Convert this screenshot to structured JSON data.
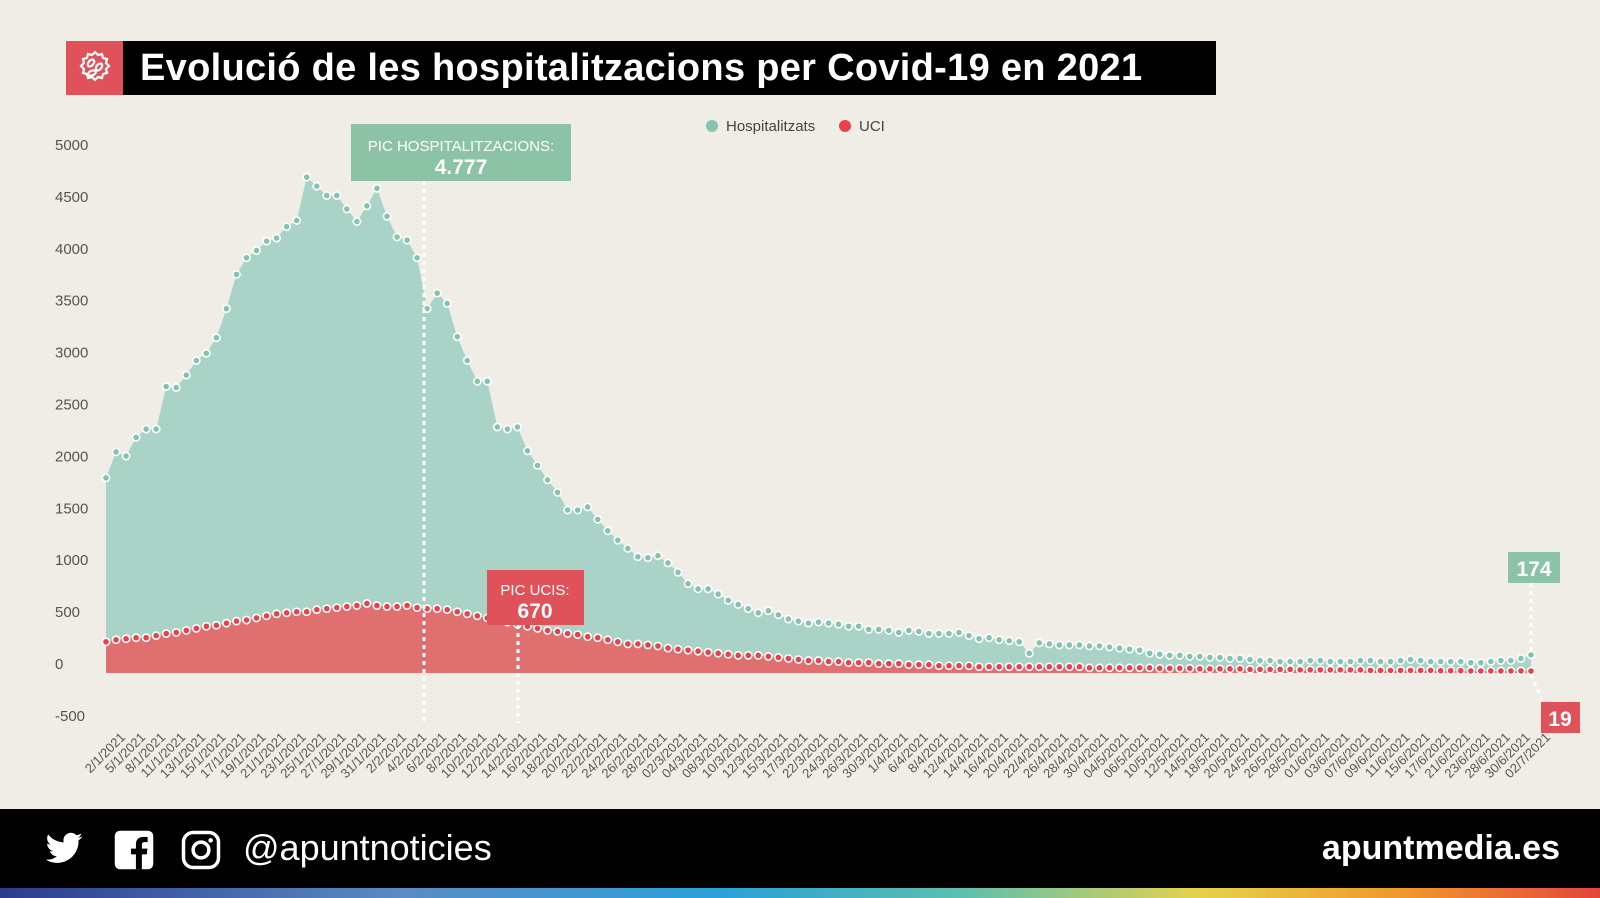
{
  "header": {
    "title": "Evolució de les hospitalitzacions per Covid-19 en 2021",
    "icon": "virus-icon"
  },
  "footer": {
    "handle": "@apuntnoticies",
    "site": "apuntmedia.es",
    "icons": [
      "twitter-icon",
      "facebook-icon",
      "instagram-icon"
    ]
  },
  "chart_data": {
    "type": "area",
    "title": "Evolució de les hospitalitzacions per Covid-19 en 2021",
    "ylim": [
      -500,
      5000
    ],
    "yticks": [
      5000,
      4500,
      4000,
      3500,
      3000,
      2500,
      2000,
      1500,
      1000,
      500,
      0,
      -500
    ],
    "legend_position": "top-center",
    "grid": false,
    "xtick_labels": [
      "2/1/2021",
      "5/1/2021",
      "8/1/2021",
      "11/1/2021",
      "13/1/2021",
      "15/1/2021",
      "17/1/2021",
      "19/1/2021",
      "21/1/2021",
      "23/1/2021",
      "25/1/2021",
      "27/1/2021",
      "29/1/2021",
      "31/1/2021",
      "2/2/2021",
      "4/2/2021",
      "6/2/2021",
      "8/2/2021",
      "10/2/2021",
      "12/2/2021",
      "14/2/2021",
      "16/2/2021",
      "18/2/2021",
      "20/2/2021",
      "22/2/2021",
      "24/2/2021",
      "26/2/2021",
      "28/2/2021",
      "02/3/2021",
      "04/3/2021",
      "08/3/2021",
      "10/3/2021",
      "12/3/2021",
      "15/3/2021",
      "17/3/2021",
      "22/3/2021",
      "24/3/2021",
      "26/3/2021",
      "30/3/2021",
      "1/4/2021",
      "6/4/2021",
      "8/4/2021",
      "12/4/2021",
      "14/4/2021",
      "16/4/2021",
      "20/4/2021",
      "22/4/2021",
      "26/4/2021",
      "28/4/2021",
      "30/4/2021",
      "04/5/2021",
      "06/5/2021",
      "10/5/2021",
      "12/5/2021",
      "14/5/2021",
      "18/5/2021",
      "20/5/2021",
      "24/5/2021",
      "26/5/2021",
      "28/5/2021",
      "01/6/2021",
      "03/6/2021",
      "07/6/2021",
      "09/6/2021",
      "11/6/2021",
      "15/6/2021",
      "17/6/2021",
      "21/6/2021",
      "23/6/2021",
      "28/6/2021",
      "30/6/2021",
      "02/7/2021"
    ],
    "series": [
      {
        "name": "Hospitalitzats",
        "color": "#a9d3c6",
        "dot_color": "#86c2b0",
        "values": [
          1880,
          2130,
          2090,
          2270,
          2350,
          2350,
          2760,
          2750,
          2870,
          3010,
          3080,
          3230,
          3510,
          3840,
          4000,
          4070,
          4160,
          4190,
          4300,
          4360,
          4777,
          4690,
          4600,
          4600,
          4470,
          4350,
          4500,
          4670,
          4400,
          4200,
          4170,
          4000,
          3510,
          3660,
          3560,
          3240,
          3010,
          2810,
          2810,
          2370,
          2350,
          2370,
          2140,
          2000,
          1860,
          1740,
          1570,
          1570,
          1600,
          1480,
          1370,
          1280,
          1200,
          1120,
          1110,
          1130,
          1060,
          970,
          860,
          810,
          810,
          760,
          700,
          660,
          620,
          580,
          600,
          560,
          520,
          500,
          480,
          490,
          480,
          470,
          450,
          450,
          420,
          420,
          410,
          390,
          410,
          400,
          380,
          380,
          380,
          390,
          360,
          330,
          340,
          320,
          310,
          300,
          190,
          290,
          280,
          270,
          270,
          270,
          260,
          260,
          250,
          240,
          230,
          220,
          190,
          180,
          170,
          170,
          160,
          160,
          150,
          150,
          140,
          140,
          130,
          120,
          120,
          110,
          110,
          110,
          120,
          120,
          110,
          110,
          110,
          120,
          120,
          110,
          110,
          120,
          130,
          120,
          110,
          110,
          110,
          110,
          100,
          100,
          110,
          120,
          120,
          140,
          174
        ]
      },
      {
        "name": "UCI",
        "color": "#e07070",
        "dot_color": "#e8414c",
        "values": [
          300,
          320,
          330,
          340,
          340,
          360,
          380,
          390,
          410,
          430,
          450,
          460,
          480,
          500,
          510,
          530,
          550,
          570,
          580,
          590,
          590,
          610,
          620,
          630,
          640,
          650,
          670,
          650,
          640,
          640,
          650,
          630,
          620,
          620,
          610,
          590,
          570,
          550,
          530,
          510,
          490,
          470,
          450,
          430,
          410,
          400,
          380,
          370,
          350,
          340,
          320,
          300,
          280,
          280,
          270,
          260,
          240,
          230,
          220,
          210,
          200,
          190,
          180,
          170,
          170,
          170,
          160,
          150,
          140,
          130,
          120,
          120,
          110,
          110,
          100,
          100,
          100,
          90,
          90,
          90,
          80,
          80,
          80,
          70,
          70,
          70,
          70,
          60,
          60,
          60,
          60,
          60,
          60,
          60,
          60,
          60,
          60,
          60,
          50,
          50,
          50,
          50,
          50,
          50,
          50,
          45,
          45,
          45,
          45,
          40,
          40,
          40,
          40,
          40,
          35,
          35,
          35,
          35,
          35,
          30,
          30,
          30,
          30,
          30,
          30,
          30,
          25,
          25,
          25,
          25,
          25,
          25,
          25,
          22,
          22,
          22,
          20,
          20,
          20,
          20,
          20,
          20,
          19
        ]
      }
    ],
    "annotations": [
      {
        "label": "PIC HOSPITALITZACIONS:",
        "value": "4.777",
        "color": "#8cc3a6"
      },
      {
        "label": "PIC UCIS:",
        "value": "670",
        "color": "#e0525a"
      },
      {
        "label": "",
        "value": "174",
        "color": "#8cc3a6"
      },
      {
        "label": "",
        "value": "19",
        "color": "#e0525a"
      }
    ]
  }
}
